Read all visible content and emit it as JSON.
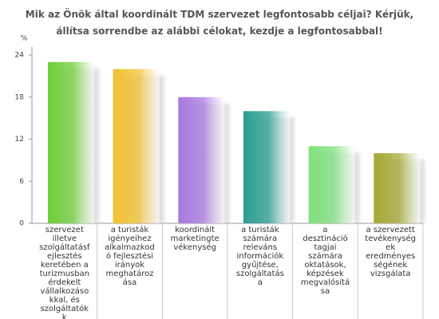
{
  "chart_data": {
    "type": "bar",
    "title": "Mik az Önök által koordinált TDM szervezet legfontosabb céljai? Kérjük, állítsa sorrendbe az alábbi célokat, kezdje a legfontosabbal!",
    "y_label": "%",
    "categories": [
      "szervezet illetve szolgáltatásfejlesztés keretében a turizmusban érdekelt vállalkozásokkal, és szolgáltatókk",
      "a turisták igényeihez alkalmazkodó fejlesztési irányok meghatározása",
      "koordinált marketingtevékenység",
      "a turisták számára releváns információk gyűjtése, szolgáltatása",
      "a desztináció tagjai számára oktatások, képzések megvalósítása",
      "a szervezett tevékenységek eredményességének vizsgálata"
    ],
    "values": [
      23,
      22,
      18,
      16,
      11,
      10
    ],
    "colors": [
      "#6fcf3a",
      "#f2c12e",
      "#a678e0",
      "#2a9d8f",
      "#7ee07a",
      "#a4a832"
    ],
    "ylim": [
      0,
      24
    ],
    "yticks": [
      0,
      6,
      12,
      18,
      24
    ],
    "grid": false
  }
}
